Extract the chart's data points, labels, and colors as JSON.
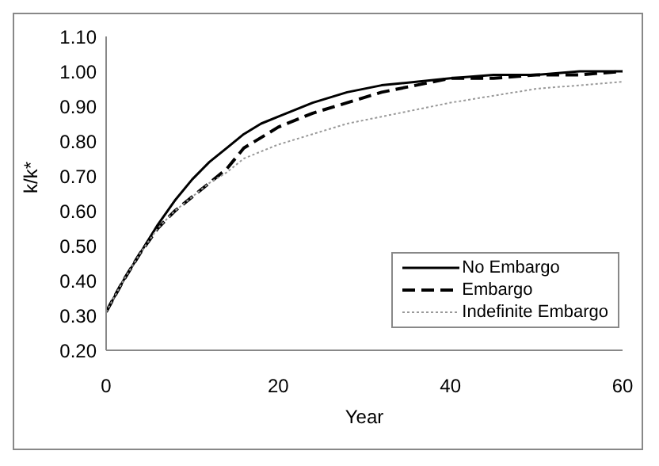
{
  "chart_data": {
    "type": "line",
    "xlabel": "Year",
    "ylabel": "k/k*",
    "x": [
      0,
      2,
      4,
      6,
      8,
      10,
      12,
      14,
      16,
      18,
      20,
      24,
      28,
      32,
      36,
      40,
      45,
      50,
      55,
      60
    ],
    "series": [
      {
        "name": "No Embargo",
        "color": "#000000",
        "line_style": "solid",
        "values": [
          0.31,
          0.4,
          0.48,
          0.56,
          0.63,
          0.69,
          0.74,
          0.78,
          0.82,
          0.85,
          0.87,
          0.91,
          0.94,
          0.96,
          0.97,
          0.98,
          0.99,
          0.99,
          1.0,
          1.0
        ]
      },
      {
        "name": "Embargo",
        "color": "#000000",
        "line_style": "dashed",
        "values": [
          0.31,
          0.4,
          0.48,
          0.55,
          0.6,
          0.64,
          0.68,
          0.72,
          0.78,
          0.81,
          0.84,
          0.88,
          0.91,
          0.94,
          0.96,
          0.98,
          0.98,
          0.99,
          0.99,
          1.0
        ]
      },
      {
        "name": "Indefinite Embargo",
        "color": "#999999",
        "line_style": "dotted",
        "values": [
          0.31,
          0.4,
          0.48,
          0.55,
          0.6,
          0.64,
          0.68,
          0.71,
          0.75,
          0.77,
          0.79,
          0.82,
          0.85,
          0.87,
          0.89,
          0.91,
          0.93,
          0.95,
          0.96,
          0.97
        ]
      }
    ],
    "xlim": [
      0,
      60
    ],
    "xticks": [
      0,
      20,
      40,
      60
    ],
    "ylim": [
      0.2,
      1.1
    ],
    "yticks": [
      {
        "value": 0.2,
        "label": "0.20"
      },
      {
        "value": 0.3,
        "label": "0.30"
      },
      {
        "value": 0.4,
        "label": "0.40"
      },
      {
        "value": 0.5,
        "label": "0.50"
      },
      {
        "value": 0.6,
        "label": "0.60"
      },
      {
        "value": 0.7,
        "label": "0.70"
      },
      {
        "value": 0.8,
        "label": "0.80"
      },
      {
        "value": 0.9,
        "label": "0.90"
      },
      {
        "value": 1.0,
        "label": "1.00"
      },
      {
        "value": 1.1,
        "label": "1.10"
      }
    ],
    "grid": false,
    "legend": "bottom right",
    "marker": "none"
  }
}
